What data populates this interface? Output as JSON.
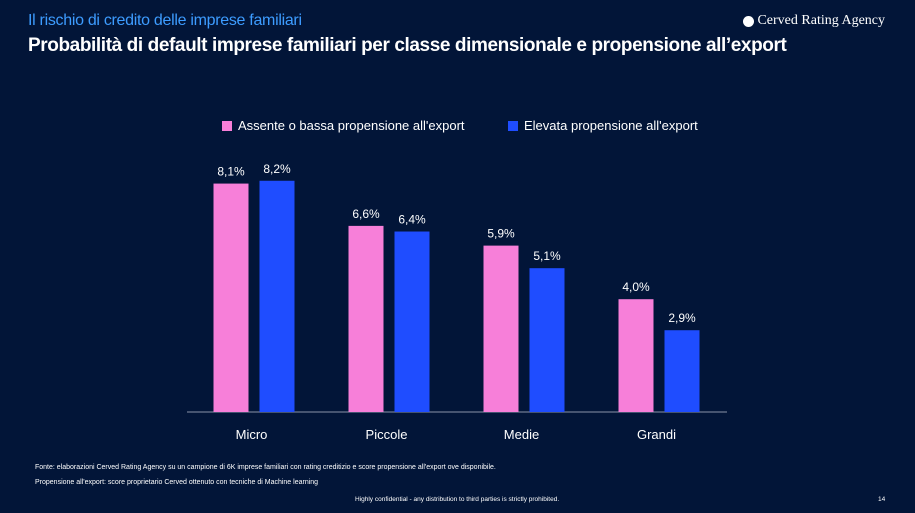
{
  "header": {
    "subtitle": "Il rischio di credito delle imprese familiari",
    "title": "Probabilità di default imprese familiari per classe dimensionale e propensione all’export",
    "logo": "Cerved Rating Agency"
  },
  "chart_data": {
    "type": "bar",
    "categories": [
      "Micro",
      "Piccole",
      "Medie",
      "Grandi"
    ],
    "series": [
      {
        "name": "Assente o bassa propensione all'export",
        "color": "#f77fd9",
        "values": [
          8.1,
          6.6,
          5.9,
          4.0
        ],
        "labels": [
          "8,1%",
          "6,6%",
          "5,9%",
          "4,0%"
        ]
      },
      {
        "name": "Elevata propensione all'export",
        "color": "#1f4dff",
        "values": [
          8.2,
          6.4,
          5.1,
          2.9
        ],
        "labels": [
          "8,2%",
          "6,4%",
          "5,1%",
          "2,9%"
        ]
      }
    ],
    "ylim": [
      0,
      9
    ],
    "legend": "top"
  },
  "footer": {
    "source": "Fonte: elaborazioni Cerved Rating Agency su un campione di 6K imprese familiari con rating creditizio e score propensione all'export ove disponibile.",
    "note": "Propensione all'export: score proprietario Cerved ottenuto con tecniche di Machine learning",
    "confidential": "Highly confidential - any distribution to third parties is strictly prohibited.",
    "page": "14"
  }
}
